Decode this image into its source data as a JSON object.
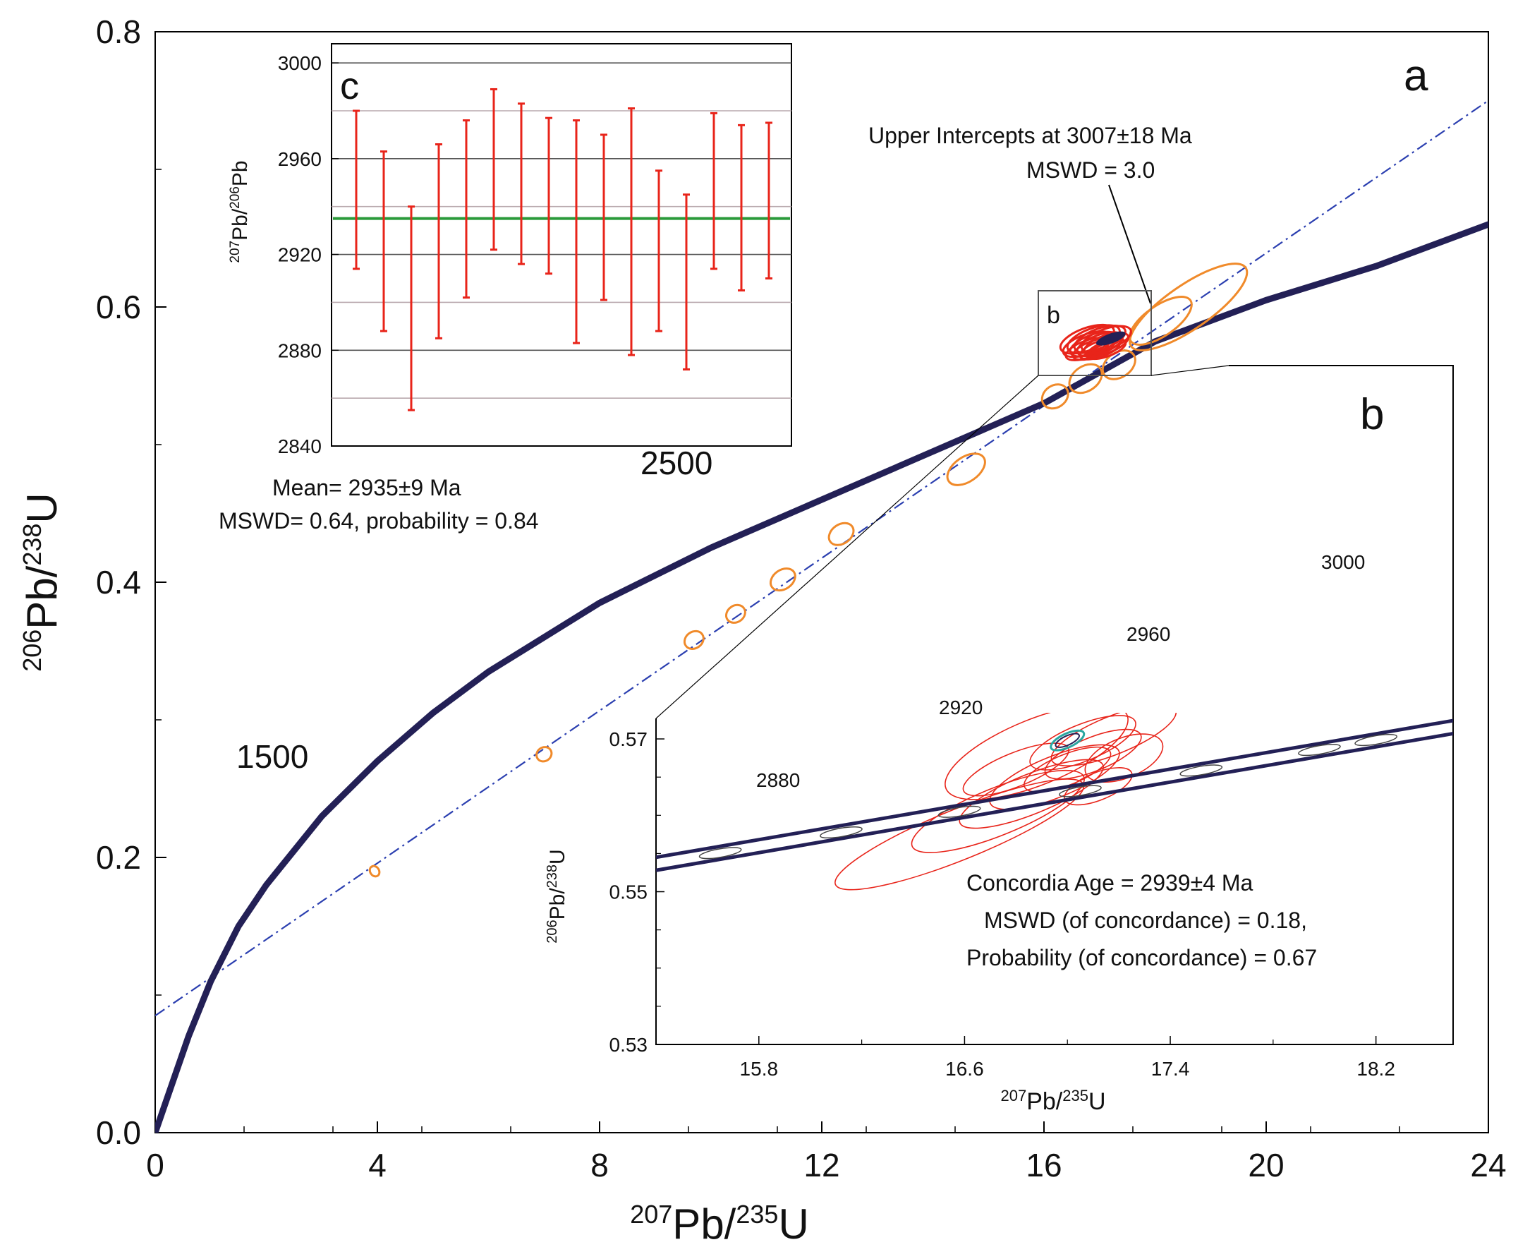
{
  "colors": {
    "concordia": "#232056",
    "discordia": "#2b3fb0",
    "ellipse_orange": "#f08a2a",
    "ellipse_red": "#e8241a",
    "mean_line": "#2a9a3a",
    "concordia_ellipse": "#2aa6a0",
    "grid_grey": "#b9a9ae"
  },
  "chart_data": [
    {
      "id": "a",
      "type": "scatter",
      "panel_label": "a",
      "xlabel_sup1": "207",
      "xlabel_mid": "Pb/",
      "xlabel_sup2": "235",
      "xlabel_end": "U",
      "ylabel_sup1": "206",
      "ylabel_mid": "Pb/",
      "ylabel_sup2": "238",
      "ylabel_end": "U",
      "xlim": [
        0,
        24
      ],
      "ylim": [
        0,
        0.8
      ],
      "xticks": [
        0,
        4,
        8,
        12,
        16,
        20,
        24
      ],
      "xtick_labels": [
        "0",
        "4",
        "8",
        "12",
        "16",
        "20",
        "24"
      ],
      "yticks": [
        0,
        0.2,
        0.4,
        0.6,
        0.8
      ],
      "ytick_labels": [
        "0.0",
        "0.2",
        "0.4",
        "0.6",
        "0.8"
      ],
      "concordia_curve": [
        [
          0,
          0
        ],
        [
          0.3,
          0.035
        ],
        [
          0.6,
          0.07
        ],
        [
          1.0,
          0.11
        ],
        [
          1.5,
          0.15
        ],
        [
          2,
          0.18
        ],
        [
          3,
          0.23
        ],
        [
          4,
          0.27
        ],
        [
          5,
          0.305
        ],
        [
          6,
          0.335
        ],
        [
          8,
          0.385
        ],
        [
          10,
          0.425
        ],
        [
          12,
          0.46
        ],
        [
          14,
          0.495
        ],
        [
          16,
          0.53
        ],
        [
          18,
          0.575
        ],
        [
          20,
          0.605
        ],
        [
          22,
          0.63
        ],
        [
          24,
          0.66
        ]
      ],
      "concordia_age_labels": [
        {
          "text": "1500",
          "x": 2.4,
          "y": 0.254
        },
        {
          "text": "2500",
          "x": 9.3,
          "y": 0.474
        }
      ],
      "discordia_line": {
        "x0": 0,
        "y0": 0.085,
        "x1": 24,
        "y1": 0.75
      },
      "orange_ellipses": [
        {
          "x": 3.95,
          "y": 0.19,
          "rx": 0.08,
          "ry": 0.004
        },
        {
          "x": 7.0,
          "y": 0.275,
          "rx": 0.14,
          "ry": 0.005
        },
        {
          "x": 9.7,
          "y": 0.358,
          "rx": 0.18,
          "ry": 0.006
        },
        {
          "x": 10.45,
          "y": 0.377,
          "rx": 0.18,
          "ry": 0.006
        },
        {
          "x": 11.3,
          "y": 0.402,
          "rx": 0.24,
          "ry": 0.007
        },
        {
          "x": 12.35,
          "y": 0.435,
          "rx": 0.24,
          "ry": 0.007
        },
        {
          "x": 14.6,
          "y": 0.482,
          "rx": 0.38,
          "ry": 0.009
        },
        {
          "x": 16.2,
          "y": 0.535,
          "rx": 0.25,
          "ry": 0.008
        },
        {
          "x": 16.75,
          "y": 0.548,
          "rx": 0.32,
          "ry": 0.009
        },
        {
          "x": 17.35,
          "y": 0.558,
          "rx": 0.32,
          "ry": 0.009
        },
        {
          "x": 18.6,
          "y": 0.6,
          "rx": 1.25,
          "ry": 0.016
        },
        {
          "x": 18.1,
          "y": 0.59,
          "rx": 0.65,
          "ry": 0.011
        }
      ],
      "red_cluster": {
        "x": 16.95,
        "y": 0.573
      },
      "zoom_box_label": "b",
      "annotation_line1": "Upper Intercepts at 3007±18 Ma",
      "annotation_line2": "MSWD = 3.0"
    },
    {
      "id": "b",
      "type": "scatter",
      "panel_label": "b",
      "xlabel_sup1": "207",
      "xlabel_mid": "Pb/",
      "xlabel_sup2": "235",
      "xlabel_end": "U",
      "ylabel_sup1": "206",
      "ylabel_mid": "Pb/",
      "ylabel_sup2": "238",
      "ylabel_end": "U",
      "xlim": [
        15.4,
        18.5
      ],
      "ylim": [
        0.53,
        0.5725
      ],
      "xticks": [
        15.8,
        16.6,
        17.4,
        18.2
      ],
      "xtick_labels": [
        "15.8",
        "16.6",
        "17.4",
        "18.2"
      ],
      "yticks": [
        0.53,
        0.55,
        0.57
      ],
      "ytick_labels": [
        "0.53",
        "0.55",
        "0.57"
      ],
      "concordia_lower": [
        [
          15.4,
          0.5528
        ],
        [
          18.5,
          0.5707
        ]
      ],
      "concordia_upper": [
        [
          15.4,
          0.5545
        ],
        [
          18.5,
          0.5724
        ]
      ],
      "age_labels": [
        {
          "text": "2880",
          "x": 15.82,
          "y": 0.5647
        },
        {
          "text": "2920",
          "x": 16.52,
          "y": 0.5693
        },
        {
          "text": "2960",
          "x": 17.18,
          "y": 0.574
        },
        {
          "text": "3000",
          "x": 18.02,
          "y": 0.5786
        }
      ],
      "age_ticks_lower": [
        [
          15.65,
          0.5546
        ],
        [
          16.12,
          0.5573
        ],
        [
          16.58,
          0.56
        ],
        [
          17.05,
          0.5627
        ],
        [
          17.52,
          0.5654
        ],
        [
          17.98,
          0.5681
        ],
        [
          18.2,
          0.5694
        ]
      ],
      "red_ellipses": [
        {
          "x": 16.58,
          "y": 0.5575,
          "rx": 0.52,
          "ry": 0.0033
        },
        {
          "x": 16.73,
          "y": 0.5605,
          "rx": 0.36,
          "ry": 0.0031
        },
        {
          "x": 16.86,
          "y": 0.5628,
          "rx": 0.3,
          "ry": 0.0026
        },
        {
          "x": 16.95,
          "y": 0.565,
          "rx": 0.27,
          "ry": 0.0027
        },
        {
          "x": 16.88,
          "y": 0.5683,
          "rx": 0.38,
          "ry": 0.0043
        },
        {
          "x": 17.06,
          "y": 0.5695,
          "rx": 0.22,
          "ry": 0.0024
        },
        {
          "x": 17.18,
          "y": 0.5705,
          "rx": 0.26,
          "ry": 0.0025
        },
        {
          "x": 17.1,
          "y": 0.568,
          "rx": 0.2,
          "ry": 0.0022
        },
        {
          "x": 17.0,
          "y": 0.566,
          "rx": 0.18,
          "ry": 0.002
        },
        {
          "x": 17.22,
          "y": 0.5675,
          "rx": 0.16,
          "ry": 0.0026
        },
        {
          "x": 16.8,
          "y": 0.566,
          "rx": 0.22,
          "ry": 0.0022
        },
        {
          "x": 17.12,
          "y": 0.5638,
          "rx": 0.14,
          "ry": 0.0018
        }
      ],
      "concordia_ellipses": [
        {
          "x": 17.0,
          "y": 0.5698,
          "rx": 0.07,
          "ry": 0.0009
        },
        {
          "x": 17.0,
          "y": 0.5698,
          "rx": 0.05,
          "ry": 0.0006
        }
      ],
      "annotation_line1": "Concordia  Age = 2939±4 Ma",
      "annotation_line2": "MSWD (of concordance) = 0.18,",
      "annotation_line3": "Probability  (of concordance) = 0.67"
    },
    {
      "id": "c",
      "type": "bar",
      "panel_label": "c",
      "ylabel_sup1": "207",
      "ylabel_mid": "Pb/",
      "ylabel_sup2": "206",
      "ylabel_end": "Pb",
      "ylim": [
        2840,
        3008
      ],
      "yticks": [
        2840,
        2880,
        2920,
        2960,
        3000
      ],
      "ytick_labels": [
        "2840",
        "2880",
        "2920",
        "2960",
        "3000"
      ],
      "grid_lines": [
        2860,
        2880,
        2900,
        2920,
        2940,
        2960,
        2980,
        3000
      ],
      "error_bars": [
        {
          "lo": 2914,
          "hi": 2980
        },
        {
          "lo": 2888,
          "hi": 2963
        },
        {
          "lo": 2855,
          "hi": 2940
        },
        {
          "lo": 2885,
          "hi": 2966
        },
        {
          "lo": 2902,
          "hi": 2976
        },
        {
          "lo": 2922,
          "hi": 2989
        },
        {
          "lo": 2916,
          "hi": 2983
        },
        {
          "lo": 2912,
          "hi": 2977
        },
        {
          "lo": 2883,
          "hi": 2976
        },
        {
          "lo": 2901,
          "hi": 2970
        },
        {
          "lo": 2878,
          "hi": 2981
        },
        {
          "lo": 2888,
          "hi": 2955
        },
        {
          "lo": 2872,
          "hi": 2945
        },
        {
          "lo": 2914,
          "hi": 2979
        },
        {
          "lo": 2905,
          "hi": 2974
        },
        {
          "lo": 2910,
          "hi": 2975
        }
      ],
      "mean": 2935,
      "annotation_line1": "Mean= 2935±9 Ma",
      "annotation_line2": "MSWD= 0.64, probability = 0.84"
    }
  ]
}
